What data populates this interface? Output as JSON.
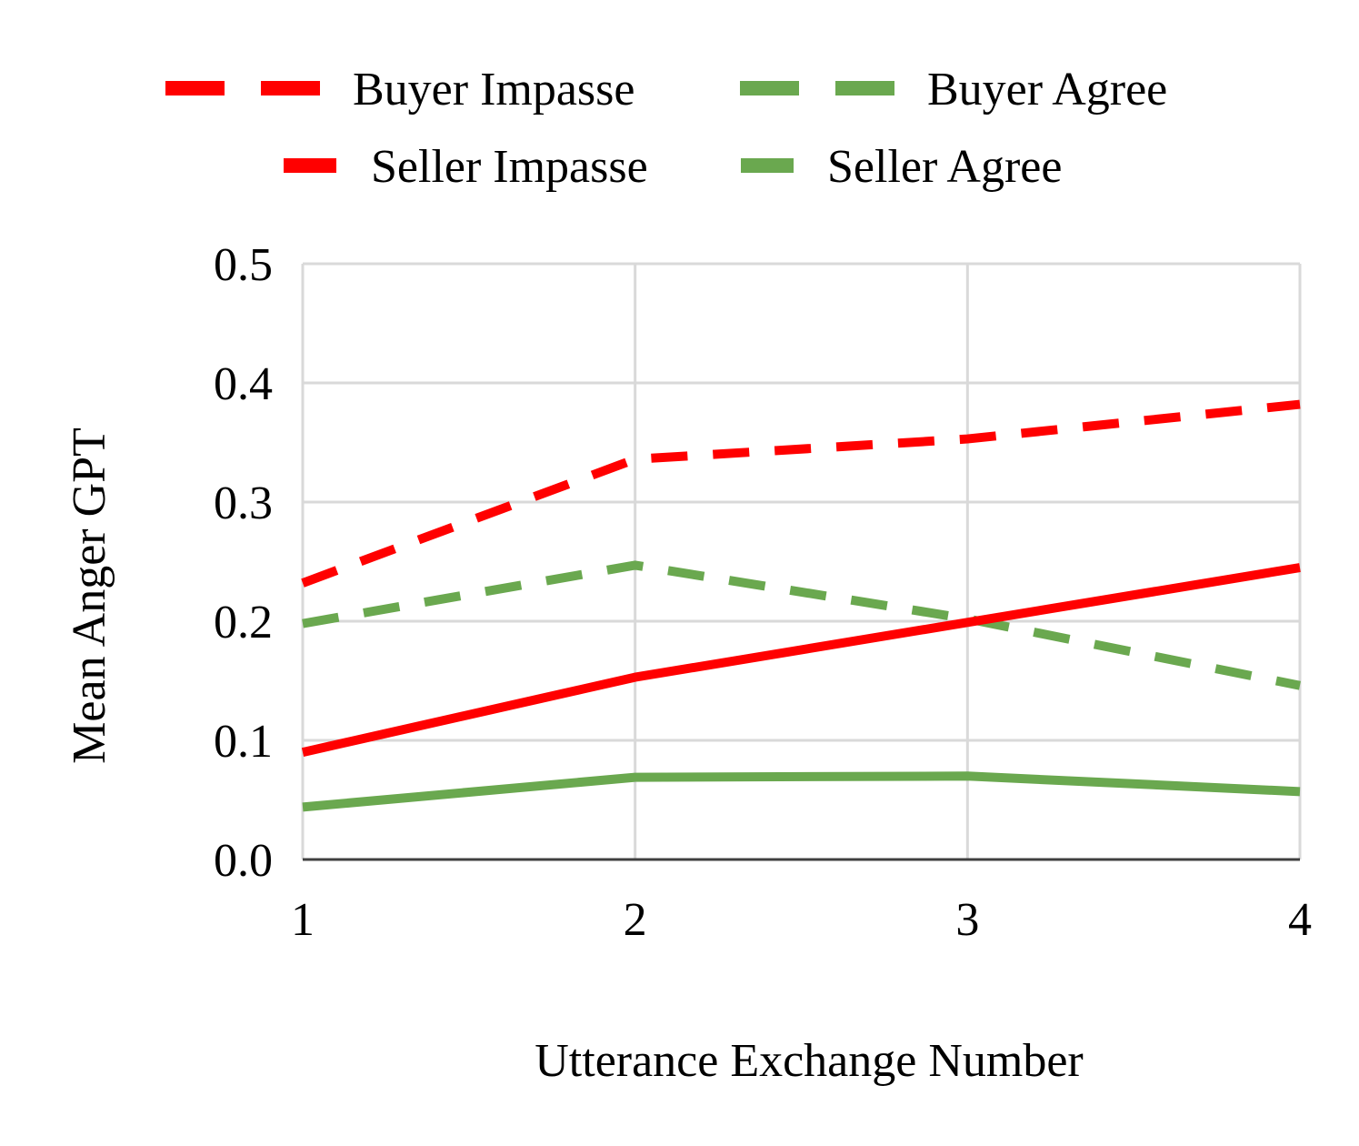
{
  "chart_data": {
    "type": "line",
    "title": "",
    "xlabel": "Utterance Exchange Number",
    "ylabel": "Mean Anger GPT",
    "x": [
      1,
      2,
      3,
      4
    ],
    "x_tick_labels": [
      "1",
      "2",
      "3",
      "4"
    ],
    "y_tick_labels": [
      "0.0",
      "0.1",
      "0.2",
      "0.3",
      "0.4",
      "0.5"
    ],
    "ylim": [
      0,
      0.5
    ],
    "grid": true,
    "legend_position": "top",
    "series": [
      {
        "name": "Buyer Impasse",
        "values": [
          0.232,
          0.336,
          0.353,
          0.382
        ],
        "color": "#ff0000",
        "style": "dashed"
      },
      {
        "name": "Buyer Agree",
        "values": [
          0.198,
          0.247,
          0.202,
          0.146
        ],
        "color": "#6aa84f",
        "style": "dashed"
      },
      {
        "name": "Seller Impasse",
        "values": [
          0.09,
          0.153,
          0.199,
          0.245
        ],
        "color": "#ff0000",
        "style": "solid"
      },
      {
        "name": "Seller Agree",
        "values": [
          0.044,
          0.069,
          0.07,
          0.057
        ],
        "color": "#6aa84f",
        "style": "solid"
      }
    ]
  }
}
